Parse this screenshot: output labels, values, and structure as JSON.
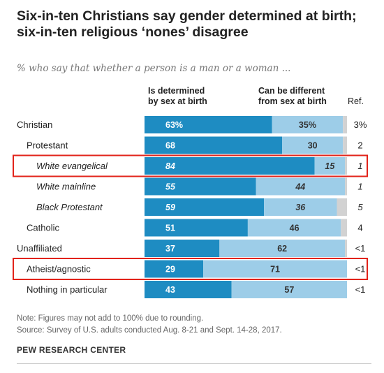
{
  "title_line1": "Six-in-ten Christians say gender determined at birth;",
  "title_line2": "six-in-ten religious ‘nones’ disagree",
  "subtitle": "% who say that whether a person is a man or a woman ...",
  "column_headers": {
    "col1_line1": "Is determined",
    "col1_line2": "by sex at birth",
    "col2_line1": "Can be different",
    "col2_line2": "from sex at birth",
    "col3": "Ref."
  },
  "notes": {
    "note": "Note: Figures may not add to 100% due to rounding.",
    "source": "Source: Survey of U.S. adults conducted Aug. 8-21 and Sept. 14-28, 2017."
  },
  "source_org": "PEW RESEARCH CENTER",
  "colors": {
    "series1": "#1e8cc2",
    "series2": "#9dcde8",
    "refused": "#d2d2d2",
    "highlight_box": "#e2231a",
    "label_dark": "#333333",
    "label_light": "#ffffff"
  },
  "chart_data": {
    "type": "bar",
    "stacked": true,
    "orientation": "horizontal",
    "categories": [
      "Christian",
      "Protestant",
      "White evangelical",
      "White mainline",
      "Black Protestant",
      "Catholic",
      "Unaffiliated",
      "Atheist/agnostic",
      "Nothing in particular"
    ],
    "category_indent": [
      0,
      1,
      2,
      2,
      2,
      1,
      0,
      1,
      1
    ],
    "category_italic": [
      false,
      false,
      true,
      true,
      true,
      false,
      false,
      false,
      false
    ],
    "highlighted": [
      "White evangelical",
      "Atheist/agnostic"
    ],
    "series": [
      {
        "name": "Is determined by sex at birth",
        "values": [
          63,
          68,
          84,
          55,
          59,
          51,
          37,
          29,
          43
        ],
        "labels": [
          "63%",
          "68",
          "84",
          "55",
          "59",
          "51",
          "37",
          "29",
          "43"
        ]
      },
      {
        "name": "Can be different from sex at birth",
        "values": [
          35,
          30,
          15,
          44,
          36,
          46,
          62,
          71,
          57
        ],
        "labels": [
          "35%",
          "30",
          "15",
          "44",
          "36",
          "46",
          "62",
          "71",
          "57"
        ]
      }
    ],
    "refused": {
      "name": "Ref.",
      "labels": [
        "3%",
        "2",
        "1",
        "1",
        "5",
        "4",
        "<1",
        "<1",
        "<1"
      ]
    }
  }
}
